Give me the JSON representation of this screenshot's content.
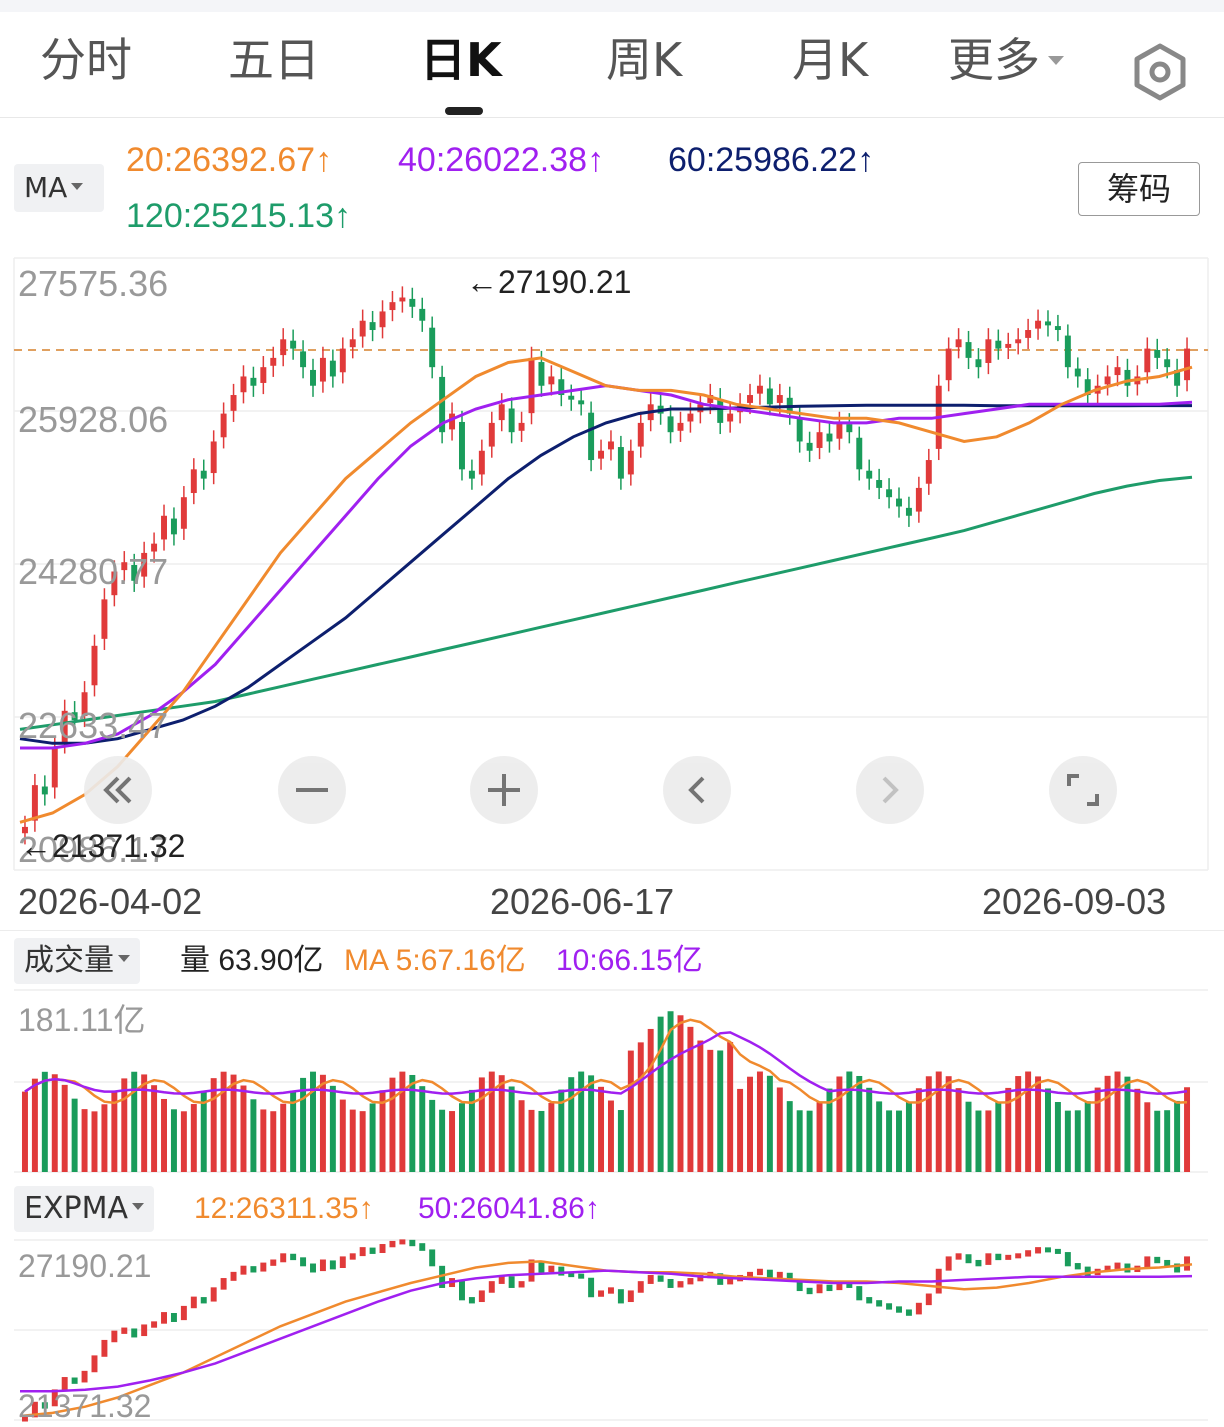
{
  "tabs": [
    {
      "label": "分时",
      "active": false
    },
    {
      "label": "五日",
      "active": false
    },
    {
      "label": "日K",
      "active": true
    },
    {
      "label": "周K",
      "active": false
    },
    {
      "label": "月K",
      "active": false
    },
    {
      "label": "更多",
      "active": false
    }
  ],
  "settings_icon": "hexagon-gear-icon",
  "ma": {
    "selector_label": "MA",
    "ma20": "20:26392.67↑",
    "ma40": "40:26022.38↑",
    "ma60": "60:25986.22↑",
    "ma120": "120:25215.13↑",
    "chips_button": "筹码"
  },
  "colors": {
    "up": "#e03a3a",
    "down": "#1a9c5b",
    "ma20": "#f08a2e",
    "ma40": "#a020f0",
    "ma60": "#0d1f6e",
    "ma120": "#1e9c6a"
  },
  "price_axis": {
    "labels": [
      "27575.36",
      "25928.06",
      "24280.77",
      "22633.47",
      "20986.17"
    ],
    "high_marker": "←27190.21",
    "low_marker": "←21371.32"
  },
  "controls": [
    {
      "name": "rewind-button",
      "icon": "double-chevron-left-icon"
    },
    {
      "name": "zoom-out-button",
      "icon": "minus-icon"
    },
    {
      "name": "zoom-in-button",
      "icon": "plus-icon"
    },
    {
      "name": "prev-button",
      "icon": "chevron-left-icon"
    },
    {
      "name": "next-button",
      "icon": "chevron-right-icon"
    },
    {
      "name": "fullscreen-button",
      "icon": "expand-icon"
    }
  ],
  "dates": [
    "2026-04-02",
    "2026-06-17",
    "2026-09-03"
  ],
  "volume": {
    "selector_label": "成交量",
    "current": "量 63.90亿",
    "ma5": "MA 5:67.16亿",
    "ma10": "10:66.15亿",
    "axis_label": "181.11亿"
  },
  "expma": {
    "selector_label": "EXPMA",
    "ema12": "12:26311.35↑",
    "ema50": "50:26041.86↑",
    "axis_top": "27190.21",
    "axis_bottom": "21371.32"
  },
  "chart_data": {
    "type": "candlestick",
    "x_start": "2026-04-02",
    "x_mid": "2026-06-17",
    "x_end": "2026-09-03",
    "ylim": [
      20986.17,
      27575.36
    ],
    "high": 27190.21,
    "low": 21371.32,
    "closes": [
      21450,
      21900,
      21800,
      22300,
      22700,
      22600,
      22900,
      23400,
      23900,
      24200,
      24300,
      24100,
      24400,
      24500,
      24800,
      24600,
      25000,
      25300,
      25200,
      25600,
      25900,
      26100,
      26300,
      26200,
      26400,
      26500,
      26700,
      26600,
      26400,
      26200,
      26500,
      26300,
      26600,
      26700,
      26900,
      26800,
      27000,
      27100,
      27150,
      27050,
      26900,
      26400,
      25700,
      25900,
      25300,
      25200,
      25500,
      25800,
      26000,
      25700,
      25800,
      26500,
      26200,
      26300,
      26100,
      26050,
      26000,
      25400,
      25500,
      25600,
      25200,
      25500,
      25800,
      26000,
      25900,
      25700,
      25800,
      25900,
      26000,
      26100,
      25800,
      25900,
      26000,
      26100,
      26200,
      26000,
      26100,
      25900,
      25600,
      25500,
      25700,
      25600,
      25800,
      25700,
      25300,
      25200,
      25100,
      25000,
      24900,
      24800,
      25100,
      25400,
      26200,
      26600,
      26700,
      26500,
      26400,
      26700,
      26600,
      26650,
      26700,
      26800,
      26900,
      26850,
      26800,
      26400,
      26300,
      26100,
      26200,
      26300,
      26400,
      26200,
      26300,
      26600,
      26500,
      26400,
      26200,
      26600
    ],
    "ma20": [
      21500,
      21600,
      21800,
      22100,
      22500,
      22900,
      23400,
      23900,
      24400,
      24800,
      25200,
      25500,
      25800,
      26050,
      26300,
      26450,
      26500,
      26350,
      26200,
      26150,
      26150,
      26100,
      26000,
      25950,
      25900,
      25850,
      25850,
      25800,
      25700,
      25600,
      25650,
      25800,
      26000,
      26150,
      26250,
      26300,
      26400
    ],
    "ma40": [
      22300,
      22300,
      22350,
      22450,
      22650,
      22900,
      23200,
      23600,
      24000,
      24400,
      24800,
      25200,
      25550,
      25800,
      25950,
      26050,
      26100,
      26150,
      26200,
      26150,
      26100,
      26000,
      25950,
      25900,
      25850,
      25800,
      25800,
      25850,
      25850,
      25900,
      25950,
      26000,
      26000,
      26000,
      26000,
      26000,
      26022
    ],
    "ma60": [
      22400,
      22350,
      22350,
      22400,
      22500,
      22600,
      22750,
      22950,
      23200,
      23450,
      23700,
      24000,
      24300,
      24600,
      24900,
      25200,
      25450,
      25650,
      25800,
      25900,
      25950,
      25950,
      25960,
      25970,
      25980,
      25985,
      25990,
      25990,
      25990,
      25990,
      25985,
      25985,
      25985,
      25985,
      25985,
      25986,
      25986
    ],
    "ma120": [
      22500,
      22550,
      22600,
      22650,
      22700,
      22750,
      22800,
      22880,
      22960,
      23040,
      23120,
      23200,
      23280,
      23360,
      23440,
      23520,
      23600,
      23680,
      23760,
      23840,
      23920,
      24000,
      24080,
      24160,
      24240,
      24320,
      24400,
      24480,
      24560,
      24640,
      24740,
      24840,
      24940,
      25040,
      25120,
      25180,
      25215
    ]
  }
}
